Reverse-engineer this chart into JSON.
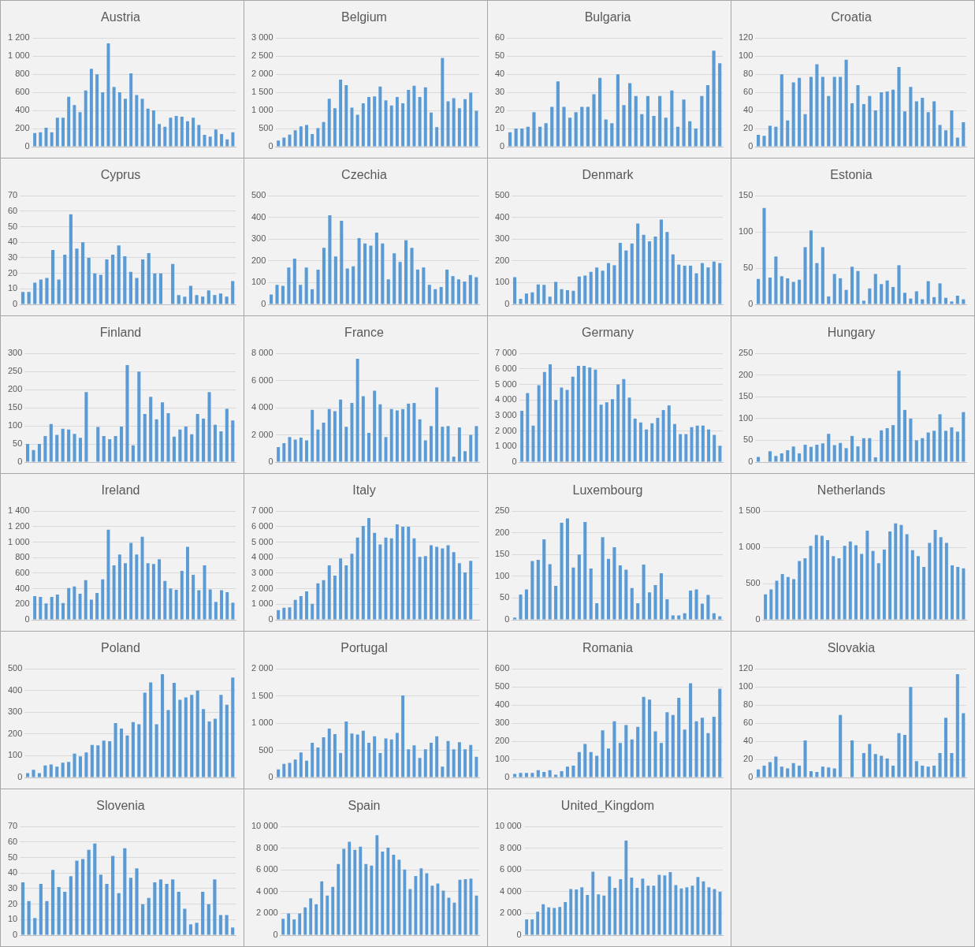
{
  "chart_data": [
    {
      "type": "bar",
      "title": "Austria",
      "color": "#5b9bd5",
      "grid": "y",
      "tick_labels": "y",
      "categories": [
        null,
        null,
        null,
        null,
        null,
        null,
        null,
        null,
        null,
        null,
        null,
        null,
        null,
        null,
        null,
        null,
        null,
        null,
        null,
        null,
        null,
        null,
        null,
        null,
        null,
        null,
        null,
        null,
        null,
        null,
        null,
        null,
        null,
        null,
        null,
        null
      ],
      "ylim": [
        0,
        1200
      ],
      "yticks": [
        0,
        200,
        400,
        600,
        800,
        {
          "value": 1000,
          "label": "1 000"
        },
        {
          "value": 1200,
          "label": "1 200"
        }
      ],
      "values": [
        150,
        160,
        210,
        160,
        320,
        320,
        550,
        460,
        380,
        620,
        860,
        800,
        600,
        1140,
        660,
        600,
        530,
        810,
        570,
        530,
        420,
        400,
        250,
        220,
        320,
        340,
        330,
        280,
        320,
        240,
        130,
        110,
        190,
        140,
        80,
        160
      ]
    },
    {
      "type": "bar",
      "title": "Belgium",
      "color": "#5b9bd5",
      "grid": "y",
      "tick_labels": "y",
      "categories": [
        null,
        null,
        null,
        null,
        null,
        null,
        null,
        null,
        null,
        null,
        null,
        null,
        null,
        null,
        null,
        null,
        null,
        null,
        null,
        null,
        null,
        null,
        null,
        null,
        null,
        null,
        null,
        null,
        null,
        null,
        null,
        null,
        null,
        null,
        null,
        null
      ],
      "ylim": [
        0,
        3000
      ],
      "yticks": [
        0,
        500,
        {
          "value": 1000,
          "label": "1 000"
        },
        {
          "value": 1500,
          "label": "1 500"
        },
        {
          "value": 2000,
          "label": "2 000"
        },
        {
          "value": 2500,
          "label": "2 500"
        },
        {
          "value": 3000,
          "label": "3 000"
        }
      ],
      "values": [
        170,
        250,
        330,
        450,
        560,
        600,
        350,
        510,
        680,
        1320,
        1060,
        1850,
        1700,
        1080,
        880,
        1200,
        1370,
        1390,
        1660,
        1280,
        1140,
        1370,
        1200,
        1570,
        1680,
        1370,
        1640,
        940,
        540,
        2450,
        1250,
        1340,
        1060,
        1310,
        1490,
        990
      ]
    },
    {
      "type": "bar",
      "title": "Bulgaria",
      "color": "#5b9bd5",
      "grid": "y",
      "tick_labels": "y",
      "categories": [
        null,
        null,
        null,
        null,
        null,
        null,
        null,
        null,
        null,
        null,
        null,
        null,
        null,
        null,
        null,
        null,
        null,
        null,
        null,
        null,
        null,
        null,
        null,
        null,
        null,
        null,
        null,
        null,
        null,
        null,
        null,
        null,
        null,
        null,
        null,
        null
      ],
      "ylim": [
        0,
        60
      ],
      "yticks": [
        0,
        10,
        20,
        30,
        40,
        50,
        60
      ],
      "values": [
        8,
        10,
        10,
        11,
        19,
        11,
        13,
        22,
        36,
        22,
        16,
        19,
        22,
        22,
        29,
        38,
        15,
        13,
        40,
        23,
        35,
        28,
        18,
        28,
        17,
        28,
        16,
        31,
        11,
        26,
        14,
        10,
        28,
        34,
        53,
        46
      ]
    },
    {
      "type": "bar",
      "title": "Croatia",
      "color": "#5b9bd5",
      "grid": "y",
      "tick_labels": "y",
      "categories": [
        null,
        null,
        null,
        null,
        null,
        null,
        null,
        null,
        null,
        null,
        null,
        null,
        null,
        null,
        null,
        null,
        null,
        null,
        null,
        null,
        null,
        null,
        null,
        null,
        null,
        null,
        null,
        null,
        null,
        null,
        null,
        null,
        null,
        null,
        null,
        null
      ],
      "ylim": [
        0,
        120
      ],
      "yticks": [
        0,
        20,
        40,
        60,
        80,
        100,
        120
      ],
      "values": [
        13,
        12,
        23,
        22,
        80,
        29,
        71,
        76,
        36,
        77,
        91,
        77,
        56,
        77,
        77,
        96,
        48,
        68,
        47,
        56,
        40,
        60,
        61,
        63,
        88,
        39,
        66,
        50,
        54,
        38,
        50,
        24,
        18,
        40,
        10,
        27
      ]
    },
    {
      "type": "bar",
      "title": "Cyprus",
      "color": "#5b9bd5",
      "grid": "y",
      "tick_labels": "y",
      "categories": [
        null,
        null,
        null,
        null,
        null,
        null,
        null,
        null,
        null,
        null,
        null,
        null,
        null,
        null,
        null,
        null,
        null,
        null,
        null,
        null,
        null,
        null,
        null,
        null,
        null,
        null,
        null,
        null,
        null,
        null,
        null,
        null,
        null,
        null,
        null,
        null
      ],
      "ylim": [
        0,
        70
      ],
      "yticks": [
        0,
        10,
        20,
        30,
        40,
        50,
        60,
        70
      ],
      "values": [
        8,
        8,
        14,
        16,
        17,
        35,
        16,
        32,
        58,
        36,
        40,
        30,
        20,
        19,
        29,
        32,
        38,
        31,
        21,
        17,
        29,
        33,
        20,
        20,
        null,
        26,
        6,
        5,
        12,
        6,
        5,
        9,
        6,
        7,
        5,
        15
      ]
    },
    {
      "type": "bar",
      "title": "Czechia",
      "color": "#5b9bd5",
      "grid": "y",
      "tick_labels": "y",
      "categories": [
        null,
        null,
        null,
        null,
        null,
        null,
        null,
        null,
        null,
        null,
        null,
        null,
        null,
        null,
        null,
        null,
        null,
        null,
        null,
        null,
        null,
        null,
        null,
        null,
        null,
        null,
        null,
        null,
        null,
        null,
        null,
        null,
        null,
        null,
        null,
        null
      ],
      "ylim": [
        0,
        500
      ],
      "yticks": [
        0,
        100,
        200,
        300,
        400,
        500
      ],
      "values": [
        45,
        90,
        85,
        170,
        210,
        90,
        170,
        70,
        160,
        260,
        410,
        220,
        385,
        165,
        175,
        305,
        280,
        270,
        330,
        280,
        115,
        235,
        195,
        295,
        260,
        160,
        170,
        90,
        70,
        80,
        160,
        130,
        115,
        105,
        135,
        125
      ]
    },
    {
      "type": "bar",
      "title": "Denmark",
      "color": "#5b9bd5",
      "grid": "y",
      "tick_labels": "y",
      "categories": [
        null,
        null,
        null,
        null,
        null,
        null,
        null,
        null,
        null,
        null,
        null,
        null,
        null,
        null,
        null,
        null,
        null,
        null,
        null,
        null,
        null,
        null,
        null,
        null,
        null,
        null,
        null,
        null,
        null,
        null,
        null,
        null,
        null,
        null,
        null,
        null
      ],
      "ylim": [
        0,
        500
      ],
      "yticks": [
        0,
        100,
        200,
        300,
        400,
        500
      ],
      "values": [
        125,
        25,
        50,
        55,
        92,
        90,
        35,
        103,
        70,
        65,
        63,
        128,
        132,
        150,
        170,
        155,
        190,
        180,
        283,
        248,
        280,
        372,
        320,
        290,
        312,
        390,
        333,
        230,
        183,
        178,
        178,
        143,
        190,
        170,
        197,
        190
      ]
    },
    {
      "type": "bar",
      "title": "Estonia",
      "color": "#5b9bd5",
      "grid": "y",
      "tick_labels": "y",
      "categories": [
        null,
        null,
        null,
        null,
        null,
        null,
        null,
        null,
        null,
        null,
        null,
        null,
        null,
        null,
        null,
        null,
        null,
        null,
        null,
        null,
        null,
        null,
        null,
        null,
        null,
        null,
        null,
        null,
        null,
        null,
        null,
        null,
        null,
        null,
        null,
        null
      ],
      "ylim": [
        0,
        150
      ],
      "yticks": [
        0,
        50,
        100,
        150
      ],
      "values": [
        35,
        133,
        37,
        66,
        39,
        36,
        31,
        34,
        79,
        102,
        57,
        79,
        11,
        42,
        36,
        20,
        52,
        46,
        5,
        22,
        42,
        28,
        33,
        24,
        54,
        16,
        8,
        18,
        7,
        32,
        10,
        29,
        9,
        4,
        12,
        7
      ]
    },
    {
      "type": "bar",
      "title": "Finland",
      "color": "#5b9bd5",
      "grid": "y",
      "tick_labels": "y",
      "categories": [
        null,
        null,
        null,
        null,
        null,
        null,
        null,
        null,
        null,
        null,
        null,
        null,
        null,
        null,
        null,
        null,
        null,
        null,
        null,
        null,
        null,
        null,
        null,
        null,
        null,
        null,
        null,
        null,
        null,
        null,
        null,
        null,
        null,
        null,
        null,
        null
      ],
      "ylim": [
        0,
        300
      ],
      "yticks": [
        0,
        50,
        100,
        150,
        200,
        250,
        300
      ],
      "values": [
        50,
        33,
        50,
        72,
        105,
        75,
        92,
        90,
        78,
        67,
        193,
        null,
        97,
        72,
        63,
        72,
        98,
        268,
        46,
        250,
        133,
        180,
        118,
        165,
        135,
        70,
        90,
        98,
        77,
        133,
        120,
        193,
        103,
        85,
        147,
        115
      ]
    },
    {
      "type": "bar",
      "title": "France",
      "color": "#5b9bd5",
      "grid": "y",
      "tick_labels": "y",
      "categories": [
        null,
        null,
        null,
        null,
        null,
        null,
        null,
        null,
        null,
        null,
        null,
        null,
        null,
        null,
        null,
        null,
        null,
        null,
        null,
        null,
        null,
        null,
        null,
        null,
        null,
        null,
        null,
        null,
        null,
        null,
        null,
        null,
        null,
        null,
        null,
        null
      ],
      "ylim": [
        0,
        8000
      ],
      "yticks": [
        0,
        {
          "value": 2000,
          "label": "2 000"
        },
        {
          "value": 4000,
          "label": "4 000"
        },
        {
          "value": 6000,
          "label": "6 000"
        },
        {
          "value": 8000,
          "label": "8 000"
        }
      ],
      "values": [
        1100,
        1400,
        1850,
        1650,
        1800,
        1600,
        3850,
        2400,
        2900,
        3900,
        3750,
        4600,
        2600,
        4350,
        7600,
        4850,
        2150,
        5250,
        4250,
        1850,
        3900,
        3800,
        3900,
        4300,
        4350,
        3150,
        1600,
        2650,
        5500,
        2600,
        2650,
        400,
        2550,
        800,
        2000,
        2650
      ]
    },
    {
      "type": "bar",
      "title": "Germany",
      "color": "#5b9bd5",
      "grid": "y",
      "tick_labels": "y",
      "categories": [
        null,
        null,
        null,
        null,
        null,
        null,
        null,
        null,
        null,
        null,
        null,
        null,
        null,
        null,
        null,
        null,
        null,
        null,
        null,
        null,
        null,
        null,
        null,
        null,
        null,
        null,
        null,
        null,
        null,
        null,
        null,
        null,
        null,
        null,
        null,
        null
      ],
      "ylim": [
        0,
        7000
      ],
      "yticks": [
        0,
        {
          "value": 1000,
          "label": "1 000"
        },
        {
          "value": 2000,
          "label": "2 000"
        },
        {
          "value": 3000,
          "label": "3 000"
        },
        {
          "value": 4000,
          "label": "4 000"
        },
        {
          "value": 5000,
          "label": "5 000"
        },
        {
          "value": 6000,
          "label": "6 000"
        },
        {
          "value": 7000,
          "label": "7 000"
        }
      ],
      "values": [
        3300,
        4450,
        2350,
        4950,
        5800,
        6300,
        4000,
        4800,
        4650,
        5500,
        6200,
        6200,
        6100,
        5950,
        3700,
        3850,
        4050,
        5000,
        5350,
        4150,
        2800,
        2550,
        2100,
        2500,
        2850,
        3350,
        3650,
        2450,
        1800,
        1800,
        2250,
        2350,
        2350,
        2100,
        1750,
        1050
      ]
    },
    {
      "type": "bar",
      "title": "Hungary",
      "color": "#5b9bd5",
      "grid": "y",
      "tick_labels": "y",
      "categories": [
        null,
        null,
        null,
        null,
        null,
        null,
        null,
        null,
        null,
        null,
        null,
        null,
        null,
        null,
        null,
        null,
        null,
        null,
        null,
        null,
        null,
        null,
        null,
        null,
        null,
        null,
        null,
        null,
        null,
        null,
        null,
        null,
        null,
        null,
        null,
        null
      ],
      "ylim": [
        0,
        250
      ],
      "yticks": [
        0,
        50,
        100,
        150,
        200,
        250
      ],
      "values": [
        12,
        null,
        25,
        14,
        20,
        27,
        36,
        20,
        40,
        35,
        40,
        43,
        65,
        39,
        44,
        32,
        60,
        36,
        55,
        55,
        11,
        73,
        78,
        85,
        210,
        120,
        100,
        50,
        55,
        68,
        72,
        110,
        72,
        80,
        70,
        115
      ]
    },
    {
      "type": "bar",
      "title": "Ireland",
      "color": "#5b9bd5",
      "grid": "y",
      "tick_labels": "y",
      "categories": [
        null,
        null,
        null,
        null,
        null,
        null,
        null,
        null,
        null,
        null,
        null,
        null,
        null,
        null,
        null,
        null,
        null,
        null,
        null,
        null,
        null,
        null,
        null,
        null,
        null,
        null,
        null,
        null,
        null,
        null,
        null,
        null,
        null,
        null,
        null,
        null
      ],
      "ylim": [
        0,
        1400
      ],
      "yticks": [
        0,
        200,
        400,
        600,
        800,
        {
          "value": 1000,
          "label": "1 000"
        },
        {
          "value": 1200,
          "label": "1 200"
        },
        {
          "value": 1400,
          "label": "1 400"
        }
      ],
      "values": [
        305,
        295,
        210,
        295,
        325,
        215,
        410,
        430,
        335,
        510,
        260,
        345,
        520,
        1160,
        700,
        840,
        730,
        990,
        840,
        1070,
        730,
        720,
        780,
        500,
        405,
        385,
        630,
        940,
        580,
        380,
        700,
        390,
        230,
        380,
        355,
        220
      ]
    },
    {
      "type": "bar",
      "title": "Italy",
      "color": "#5b9bd5",
      "grid": "y",
      "tick_labels": "y",
      "categories": [
        null,
        null,
        null,
        null,
        null,
        null,
        null,
        null,
        null,
        null,
        null,
        null,
        null,
        null,
        null,
        null,
        null,
        null,
        null,
        null,
        null,
        null,
        null,
        null,
        null,
        null,
        null,
        null,
        null,
        null,
        null,
        null,
        null,
        null,
        null,
        null
      ],
      "ylim": [
        0,
        7000
      ],
      "yticks": [
        0,
        {
          "value": 1000,
          "label": "1 000"
        },
        {
          "value": 2000,
          "label": "2 000"
        },
        {
          "value": 3000,
          "label": "3 000"
        },
        {
          "value": 4000,
          "label": "4 000"
        },
        {
          "value": 5000,
          "label": "5 000"
        },
        {
          "value": 6000,
          "label": "6 000"
        },
        {
          "value": 7000,
          "label": "7 000"
        }
      ],
      "values": [
        620,
        770,
        800,
        1280,
        1520,
        1830,
        1030,
        2350,
        2550,
        3500,
        2850,
        3950,
        3500,
        4250,
        5300,
        6050,
        6550,
        5600,
        4850,
        5300,
        5250,
        6150,
        6000,
        6000,
        5250,
        4050,
        4100,
        4800,
        4700,
        4600,
        4800,
        4350,
        3650,
        3050,
        3800,
        null
      ]
    },
    {
      "type": "bar",
      "title": "Luxembourg",
      "color": "#5b9bd5",
      "grid": "y",
      "tick_labels": "y",
      "categories": [
        null,
        null,
        null,
        null,
        null,
        null,
        null,
        null,
        null,
        null,
        null,
        null,
        null,
        null,
        null,
        null,
        null,
        null,
        null,
        null,
        null,
        null,
        null,
        null,
        null,
        null,
        null,
        null,
        null,
        null,
        null,
        null,
        null,
        null,
        null,
        null
      ],
      "ylim": [
        0,
        250
      ],
      "yticks": [
        0,
        50,
        100,
        150,
        200,
        250
      ],
      "values": [
        5,
        58,
        70,
        135,
        138,
        185,
        128,
        78,
        223,
        233,
        120,
        150,
        225,
        118,
        38,
        190,
        140,
        167,
        125,
        115,
        73,
        38,
        127,
        63,
        80,
        107,
        47,
        10,
        10,
        15,
        67,
        70,
        37,
        57,
        15,
        8
      ]
    },
    {
      "type": "bar",
      "title": "Netherlands",
      "color": "#5b9bd5",
      "grid": "y",
      "tick_labels": "y",
      "categories": [
        null,
        null,
        null,
        null,
        null,
        null,
        null,
        null,
        null,
        null,
        null,
        null,
        null,
        null,
        null,
        null,
        null,
        null,
        null,
        null,
        null,
        null,
        null,
        null,
        null,
        null,
        null,
        null,
        null,
        null,
        null,
        null,
        null,
        null,
        null,
        null
      ],
      "ylim": [
        0,
        1500
      ],
      "yticks": [
        0,
        500,
        {
          "value": 1000,
          "label": "1 000"
        },
        {
          "value": 1500,
          "label": "1 500"
        }
      ],
      "values": [
        350,
        420,
        540,
        630,
        590,
        560,
        810,
        850,
        1020,
        1170,
        1160,
        1100,
        880,
        850,
        1020,
        1080,
        1030,
        910,
        1230,
        950,
        780,
        970,
        1220,
        1330,
        1310,
        1180,
        960,
        880,
        730,
        1060,
        1240,
        1140,
        1060,
        750,
        730,
        710
      ]
    },
    {
      "type": "bar",
      "title": "Poland",
      "color": "#5b9bd5",
      "grid": "y",
      "tick_labels": "y",
      "categories": [
        null,
        null,
        null,
        null,
        null,
        null,
        null,
        null,
        null,
        null,
        null,
        null,
        null,
        null,
        null,
        null,
        null,
        null,
        null,
        null,
        null,
        null,
        null,
        null,
        null,
        null,
        null,
        null,
        null,
        null,
        null,
        null,
        null,
        null,
        null,
        null
      ],
      "ylim": [
        0,
        500
      ],
      "yticks": [
        0,
        100,
        200,
        300,
        400,
        500
      ],
      "values": [
        20,
        35,
        20,
        55,
        60,
        50,
        68,
        72,
        110,
        97,
        115,
        150,
        148,
        170,
        167,
        250,
        225,
        193,
        255,
        245,
        390,
        437,
        245,
        475,
        310,
        435,
        357,
        368,
        380,
        400,
        315,
        258,
        270,
        380,
        335,
        460
      ]
    },
    {
      "type": "bar",
      "title": "Portugal",
      "color": "#5b9bd5",
      "grid": "y",
      "tick_labels": "y",
      "categories": [
        null,
        null,
        null,
        null,
        null,
        null,
        null,
        null,
        null,
        null,
        null,
        null,
        null,
        null,
        null,
        null,
        null,
        null,
        null,
        null,
        null,
        null,
        null,
        null,
        null,
        null,
        null,
        null,
        null,
        null,
        null,
        null,
        null,
        null,
        null,
        null
      ],
      "ylim": [
        0,
        2000
      ],
      "yticks": [
        0,
        500,
        {
          "value": 1000,
          "label": "1 000"
        },
        {
          "value": 1500,
          "label": "1 500"
        },
        {
          "value": 2000,
          "label": "2 000"
        }
      ],
      "values": [
        150,
        250,
        270,
        330,
        460,
        310,
        640,
        550,
        740,
        900,
        800,
        450,
        1030,
        810,
        790,
        860,
        640,
        760,
        450,
        720,
        700,
        820,
        1510,
        520,
        590,
        360,
        520,
        640,
        760,
        200,
        670,
        520,
        650,
        520,
        600,
        380
      ]
    },
    {
      "type": "bar",
      "title": "Romania",
      "color": "#5b9bd5",
      "grid": "y",
      "tick_labels": "y",
      "categories": [
        null,
        null,
        null,
        null,
        null,
        null,
        null,
        null,
        null,
        null,
        null,
        null,
        null,
        null,
        null,
        null,
        null,
        null,
        null,
        null,
        null,
        null,
        null,
        null,
        null,
        null,
        null,
        null,
        null,
        null,
        null,
        null,
        null,
        null,
        null,
        null
      ],
      "ylim": [
        0,
        600
      ],
      "yticks": [
        0,
        100,
        200,
        300,
        400,
        500,
        600
      ],
      "values": [
        20,
        25,
        25,
        25,
        40,
        30,
        40,
        15,
        35,
        60,
        65,
        140,
        185,
        140,
        120,
        260,
        160,
        310,
        190,
        290,
        210,
        280,
        445,
        430,
        255,
        190,
        360,
        345,
        440,
        265,
        520,
        310,
        330,
        245,
        335,
        490
      ]
    },
    {
      "type": "bar",
      "title": "Slovakia",
      "color": "#5b9bd5",
      "grid": "y",
      "tick_labels": "y",
      "categories": [
        null,
        null,
        null,
        null,
        null,
        null,
        null,
        null,
        null,
        null,
        null,
        null,
        null,
        null,
        null,
        null,
        null,
        null,
        null,
        null,
        null,
        null,
        null,
        null,
        null,
        null,
        null,
        null,
        null,
        null,
        null,
        null,
        null,
        null,
        null,
        null
      ],
      "ylim": [
        0,
        120
      ],
      "yticks": [
        0,
        20,
        40,
        60,
        80,
        100,
        120
      ],
      "values": [
        9,
        13,
        17,
        23,
        12,
        10,
        16,
        13,
        41,
        7,
        6,
        12,
        11,
        10,
        69,
        null,
        41,
        null,
        27,
        37,
        26,
        24,
        21,
        13,
        49,
        47,
        100,
        18,
        13,
        12,
        13,
        27,
        66,
        27,
        114,
        71
      ]
    },
    {
      "type": "bar",
      "title": "Slovenia",
      "color": "#5b9bd5",
      "grid": "y",
      "tick_labels": "y",
      "categories": [
        null,
        null,
        null,
        null,
        null,
        null,
        null,
        null,
        null,
        null,
        null,
        null,
        null,
        null,
        null,
        null,
        null,
        null,
        null,
        null,
        null,
        null,
        null,
        null,
        null,
        null,
        null,
        null,
        null,
        null,
        null,
        null,
        null,
        null,
        null,
        null
      ],
      "ylim": [
        0,
        70
      ],
      "yticks": [
        0,
        10,
        20,
        30,
        40,
        50,
        60,
        70
      ],
      "values": [
        34,
        22,
        11,
        33,
        22,
        42,
        31,
        28,
        38,
        48,
        49,
        55,
        59,
        39,
        33,
        51,
        27,
        56,
        37,
        43,
        20,
        24,
        34,
        36,
        33,
        36,
        28,
        17,
        7,
        8,
        28,
        20,
        36,
        13,
        13,
        5
      ]
    },
    {
      "type": "bar",
      "title": "Spain",
      "color": "#5b9bd5",
      "grid": "y",
      "tick_labels": "y",
      "categories": [
        null,
        null,
        null,
        null,
        null,
        null,
        null,
        null,
        null,
        null,
        null,
        null,
        null,
        null,
        null,
        null,
        null,
        null,
        null,
        null,
        null,
        null,
        null,
        null,
        null,
        null,
        null,
        null,
        null,
        null,
        null,
        null,
        null,
        null,
        null,
        null
      ],
      "ylim": [
        0,
        10000
      ],
      "yticks": [
        0,
        {
          "value": 2000,
          "label": "2 000"
        },
        {
          "value": 4000,
          "label": "4 000"
        },
        {
          "value": 6000,
          "label": "6 000"
        },
        {
          "value": 8000,
          "label": "8 000"
        },
        {
          "value": 10000,
          "label": "10 000"
        }
      ],
      "values": [
        1500,
        2000,
        1450,
        2000,
        2550,
        3400,
        2850,
        4950,
        3650,
        4450,
        6550,
        7950,
        8600,
        7850,
        8150,
        6550,
        6400,
        9200,
        7700,
        8050,
        7400,
        6950,
        6050,
        4250,
        5450,
        6150,
        5700,
        4550,
        4750,
        4100,
        3450,
        3000,
        5100,
        5150,
        5200,
        3650
      ]
    },
    {
      "type": "bar",
      "title": "United_Kingdom",
      "color": "#5b9bd5",
      "grid": "y",
      "tick_labels": "y",
      "categories": [
        null,
        null,
        null,
        null,
        null,
        null,
        null,
        null,
        null,
        null,
        null,
        null,
        null,
        null,
        null,
        null,
        null,
        null,
        null,
        null,
        null,
        null,
        null,
        null,
        null,
        null,
        null,
        null,
        null,
        null,
        null,
        null,
        null,
        null,
        null,
        null
      ],
      "ylim": [
        0,
        10000
      ],
      "yticks": [
        0,
        {
          "value": 2000,
          "label": "2 000"
        },
        {
          "value": 4000,
          "label": "4 000"
        },
        {
          "value": 6000,
          "label": "6 000"
        },
        {
          "value": 8000,
          "label": "8 000"
        },
        {
          "value": 10000,
          "label": "10 000"
        }
      ],
      "values": [
        1450,
        1450,
        2150,
        2850,
        2550,
        2500,
        2600,
        3050,
        4250,
        4200,
        4400,
        3700,
        5850,
        3750,
        3650,
        5400,
        4350,
        5150,
        8700,
        5300,
        4350,
        5200,
        4550,
        4550,
        5550,
        5500,
        5800,
        4600,
        4300,
        4400,
        4550,
        5350,
        4950,
        4400,
        4250,
        4000
      ]
    }
  ]
}
